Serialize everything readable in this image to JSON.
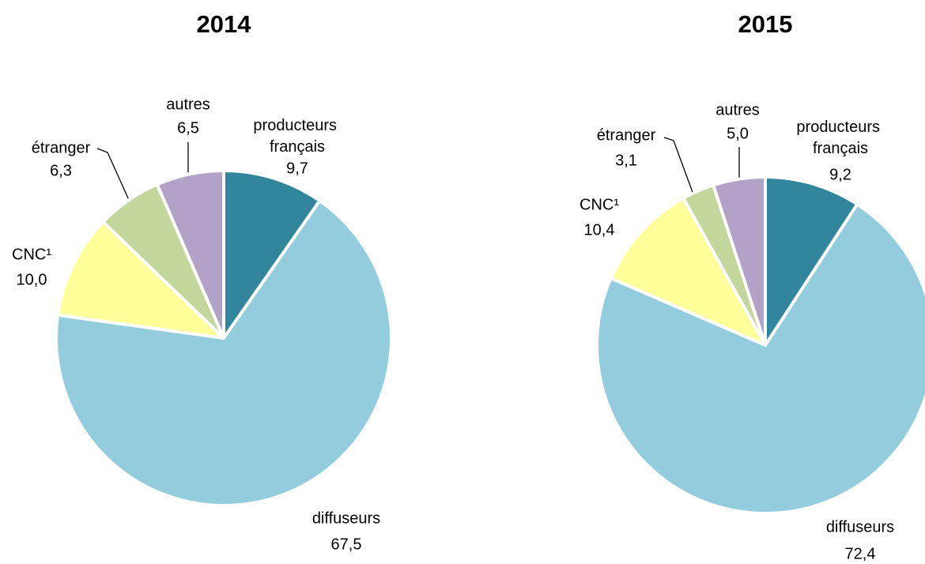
{
  "chart_data": [
    {
      "type": "pie",
      "title": "2014",
      "categories": [
        "producteurs français",
        "diffuseurs",
        "CNC¹",
        "étranger",
        "autres"
      ],
      "values": [
        9.7,
        67.5,
        10.0,
        6.3,
        6.5
      ],
      "value_labels": [
        "9,7",
        "67,5",
        "10,0",
        "6,3",
        "6,5"
      ],
      "colors": [
        "#31859c",
        "#93cddd",
        "#ffff99",
        "#c3d69b",
        "#b3a2c7"
      ]
    },
    {
      "type": "pie",
      "title": "2015",
      "categories": [
        "producteurs français",
        "diffuseurs",
        "CNC¹",
        "étranger",
        "autres"
      ],
      "values": [
        9.2,
        72.4,
        10.4,
        3.1,
        5.0
      ],
      "value_labels": [
        "9,2",
        "72,4",
        "10,4",
        "3,1",
        "5,0"
      ],
      "colors": [
        "#31859c",
        "#93cddd",
        "#ffff99",
        "#c3d69b",
        "#b3a2c7"
      ]
    }
  ]
}
